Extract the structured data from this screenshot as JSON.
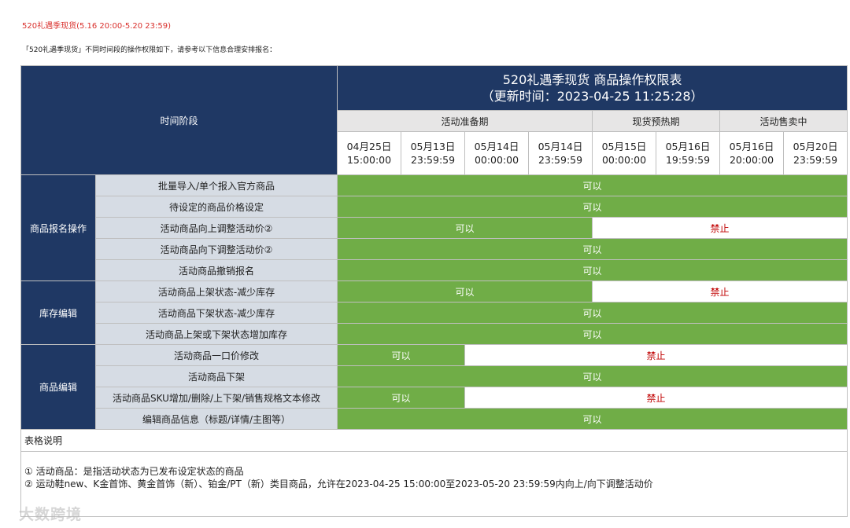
{
  "header": {
    "title": "520礼遇季现货(5.16 20:00-5.20 23:59)",
    "subtitle": "「520礼遇季现货」不同时间段的操作权限如下，请参考以下信息合理安排报名："
  },
  "table": {
    "corner": "时间阶段",
    "title_lines": [
      "520礼遇季现货 商品操作权限表",
      "（更新时间：2023-04-25 11:25:28）"
    ],
    "phases": [
      "活动准备期",
      null,
      null,
      null,
      "现货预热期",
      null,
      "活动售卖中",
      null
    ],
    "dates": [
      [
        "04月25日",
        "15:00:00"
      ],
      [
        "05月13日",
        "23:59:59"
      ],
      [
        "05月14日",
        "00:00:00"
      ],
      [
        "05月14日",
        "23:59:59"
      ],
      [
        "05月15日",
        "00:00:00"
      ],
      [
        "05月16日",
        "19:59:59"
      ],
      [
        "05月16日",
        "20:00:00"
      ],
      [
        "05月20日",
        "23:59:59"
      ]
    ],
    "styles": {
      "allowed": {
        "fill": "#70ad47",
        "color": "#ffffff"
      },
      "forbidden": {
        "fill": "#ffffff",
        "color": "#c00000"
      }
    },
    "groups": [
      {
        "label": "商品报名操作",
        "rows": [
          {
            "label": "批量导入/单个报入官方商品",
            "cells": [
              {
                "text": "可以",
                "style": "allowed"
              },
              null,
              null,
              null,
              null,
              null,
              null,
              null
            ]
          },
          {
            "label": "待设定的商品价格设定",
            "cells": [
              {
                "text": "可以",
                "style": "allowed"
              },
              null,
              null,
              null,
              null,
              null,
              null,
              null
            ]
          },
          {
            "label": "活动商品向上调整活动价②",
            "cells": [
              {
                "text": "可以",
                "style": "allowed"
              },
              null,
              null,
              null,
              {
                "text": "禁止",
                "style": "forbidden"
              },
              null,
              null,
              null
            ]
          },
          {
            "label": "活动商品向下调整活动价②",
            "cells": [
              {
                "text": "可以",
                "style": "allowed"
              },
              null,
              null,
              null,
              null,
              null,
              null,
              null
            ]
          },
          {
            "label": "活动商品撤销报名",
            "cells": [
              {
                "text": "可以",
                "style": "allowed"
              },
              null,
              null,
              null,
              null,
              null,
              null,
              null
            ]
          }
        ]
      },
      {
        "label": "库存编辑",
        "rows": [
          {
            "label": "活动商品上架状态-减少库存",
            "cells": [
              {
                "text": "可以",
                "style": "allowed"
              },
              null,
              null,
              null,
              {
                "text": "禁止",
                "style": "forbidden"
              },
              null,
              null,
              null
            ]
          },
          {
            "label": "活动商品下架状态-减少库存",
            "cells": [
              {
                "text": "可以",
                "style": "allowed"
              },
              null,
              null,
              null,
              null,
              null,
              null,
              null
            ]
          },
          {
            "label": "活动商品上架或下架状态增加库存",
            "cells": [
              {
                "text": "可以",
                "style": "allowed"
              },
              null,
              null,
              null,
              null,
              null,
              null,
              null
            ]
          }
        ]
      },
      {
        "label": "商品编辑",
        "rows": [
          {
            "label": "活动商品一口价修改",
            "cells": [
              {
                "text": "可以",
                "style": "allowed"
              },
              null,
              {
                "text": "禁止",
                "style": "forbidden"
              },
              null,
              null,
              null,
              null,
              null
            ]
          },
          {
            "label": "活动商品下架",
            "cells": [
              {
                "text": "可以",
                "style": "allowed"
              },
              null,
              null,
              null,
              null,
              null,
              null,
              null
            ]
          },
          {
            "label": "活动商品SKU增加/删除/上下架/销售规格文本修改",
            "cells": [
              {
                "text": "可以",
                "style": "allowed"
              },
              null,
              {
                "text": "禁止",
                "style": "forbidden"
              },
              null,
              null,
              null,
              null,
              null
            ]
          },
          {
            "label": "编辑商品信息（标题/详情/主图等）",
            "cells": [
              {
                "text": "可以",
                "style": "allowed"
              },
              null,
              null,
              null,
              null,
              null,
              null,
              null
            ]
          }
        ]
      }
    ],
    "notes_title": "表格说明",
    "notes": [
      "① 活动商品：是指活动状态为已发布设定状态的商品",
      "② 运动鞋new、K金首饰、黄金首饰（新）、铂金/PT（新）类目商品，允许在2023-04-25 15:00:00至2023-05-20 23:59:59内向上/向下调整活动价"
    ]
  },
  "watermark": "大数跨境"
}
